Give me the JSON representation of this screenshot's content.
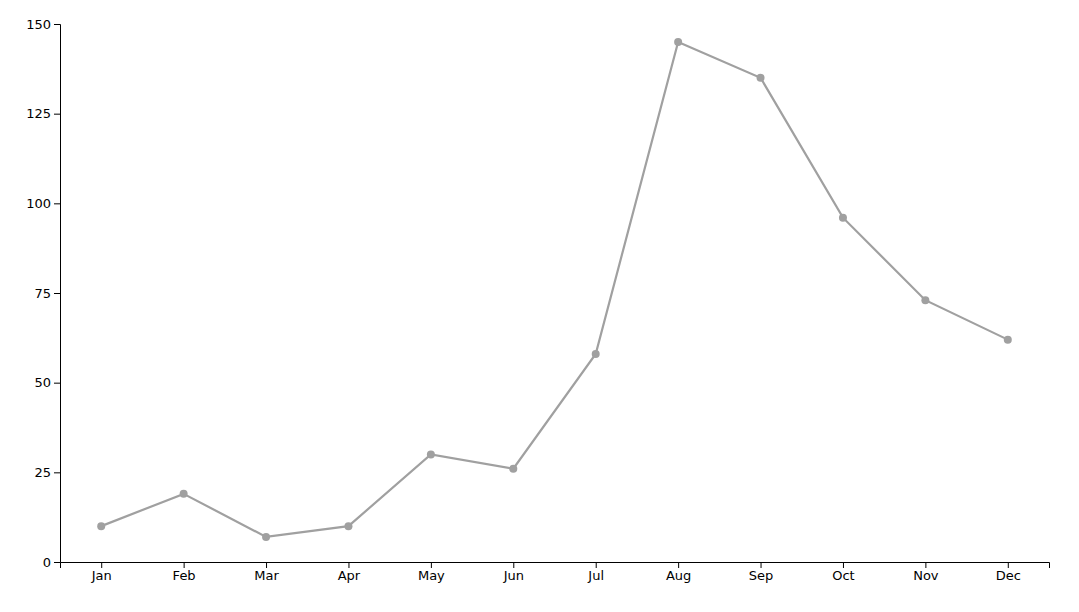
{
  "chart_data": {
    "type": "line",
    "categories": [
      "Jan",
      "Feb",
      "Mar",
      "Apr",
      "May",
      "Jun",
      "Jul",
      "Aug",
      "Sep",
      "Oct",
      "Nov",
      "Dec"
    ],
    "values": [
      10,
      19,
      7,
      10,
      30,
      26,
      58,
      145,
      135,
      96,
      73,
      62
    ],
    "color": "#a0a0a0",
    "marker": "circle",
    "ylim": [
      0,
      150
    ],
    "yticks": [
      0,
      25,
      50,
      75,
      100,
      125,
      150
    ],
    "grid": false
  }
}
